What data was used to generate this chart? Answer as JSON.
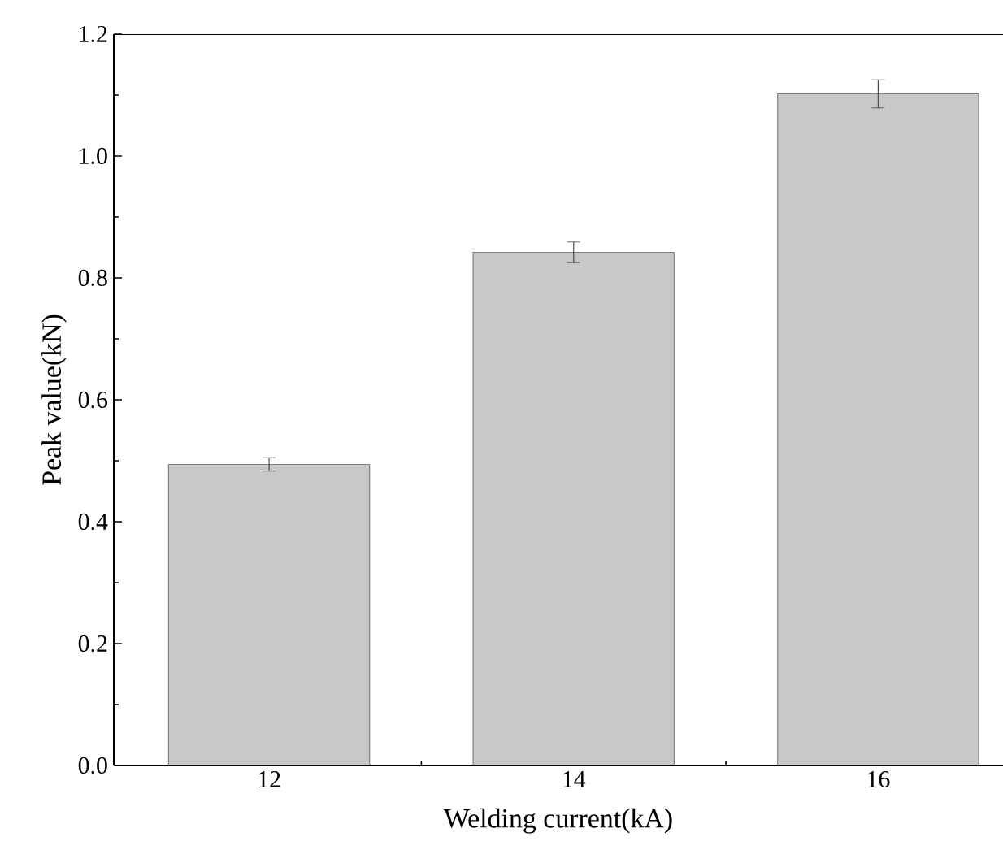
{
  "chart_data": {
    "type": "bar",
    "xlabel": "Welding current(kA)",
    "ylabel": "Peak value(kN)",
    "categories": [
      "12",
      "14",
      "16"
    ],
    "values": [
      0.494,
      0.842,
      1.102
    ],
    "errors": [
      0.011,
      0.017,
      0.023
    ],
    "color": "#c8c8c8",
    "ylim": [
      0,
      1.2
    ],
    "yticks": [
      {
        "value": 0,
        "label": "0.0"
      },
      {
        "value": 0.2,
        "label": "0.2"
      },
      {
        "value": 0.4,
        "label": "0.4"
      },
      {
        "value": 0.6,
        "label": "0.6"
      },
      {
        "value": 0.8,
        "label": "0.8"
      },
      {
        "value": 1.0,
        "label": "1.0"
      },
      {
        "value": 1.2,
        "label": "1.2"
      }
    ],
    "grid": false
  }
}
